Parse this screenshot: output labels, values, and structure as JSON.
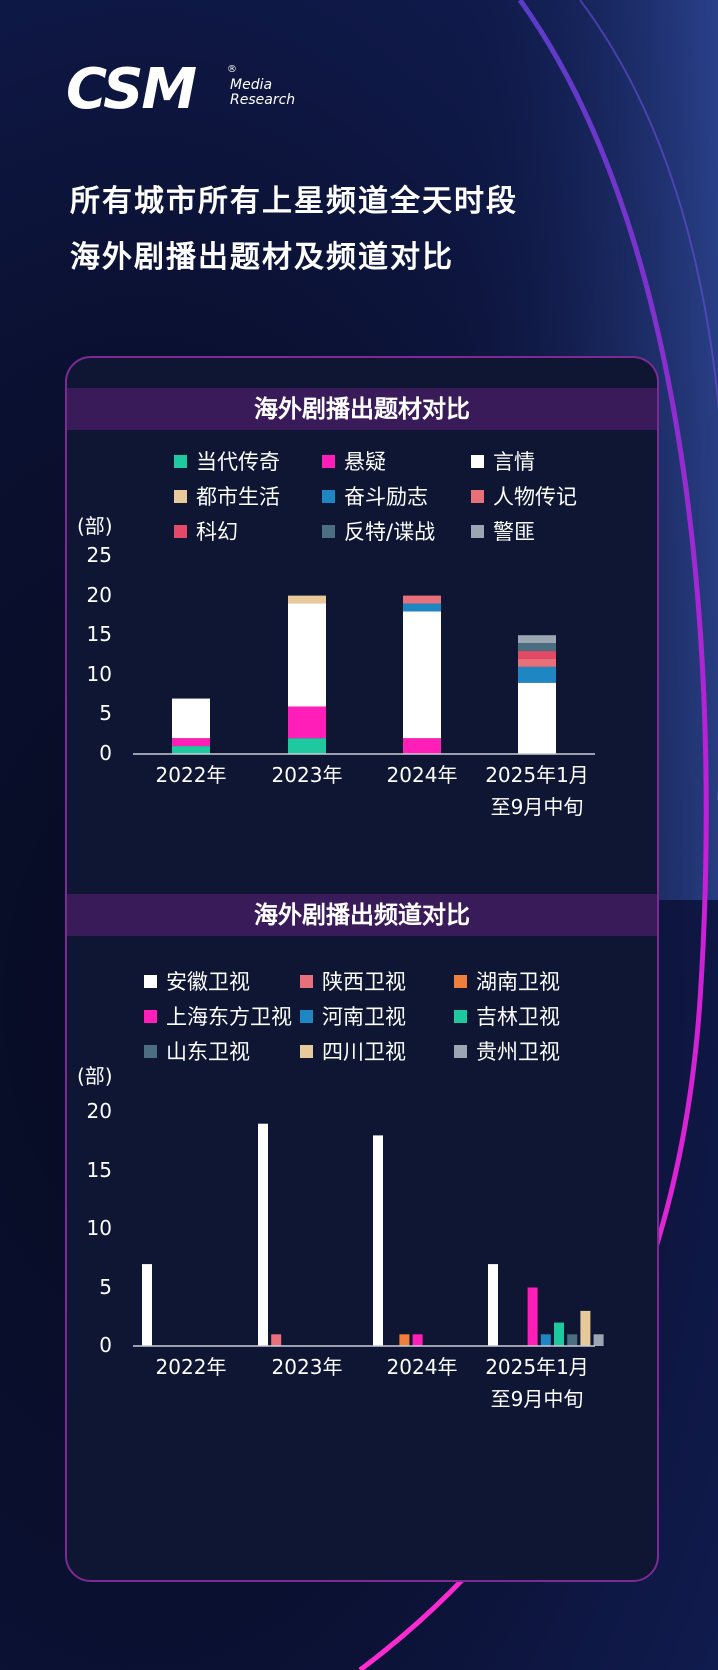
{
  "logo": {
    "main": "CSM",
    "sub1": "Media",
    "sub2": "Research"
  },
  "page": {
    "title_line1": "所有城市所有上星频道全天时段",
    "title_line2": "海外剧播出题材及频道对比"
  },
  "chart_data": [
    {
      "type": "bar",
      "stacked": true,
      "title": "海外剧播出题材对比",
      "ylabel": "(部)",
      "ylim": [
        0,
        25
      ],
      "yticks": [
        0,
        5,
        10,
        15,
        20,
        25
      ],
      "categories": [
        "2022年",
        "2023年",
        "2024年",
        "2025年1月\n至9月中旬"
      ],
      "series": [
        {
          "name": "当代传奇",
          "color": "#1ec9a0",
          "values": [
            1,
            2,
            0,
            0
          ]
        },
        {
          "name": "悬疑",
          "color": "#ff1fb8",
          "values": [
            1,
            4,
            2,
            0
          ]
        },
        {
          "name": "言情",
          "color": "#ffffff",
          "values": [
            5,
            13,
            16,
            9
          ]
        },
        {
          "name": "都市生活",
          "color": "#e8c99b",
          "values": [
            0,
            1,
            0,
            0
          ]
        },
        {
          "name": "奋斗励志",
          "color": "#1f86c4",
          "values": [
            0,
            0,
            1,
            2
          ]
        },
        {
          "name": "人物传记",
          "color": "#e8707a",
          "values": [
            0,
            0,
            1,
            1
          ]
        },
        {
          "name": "科幻",
          "color": "#e34a67",
          "values": [
            0,
            0,
            0,
            1
          ]
        },
        {
          "name": "反特/谍战",
          "color": "#4b6e80",
          "values": [
            0,
            0,
            0,
            1
          ]
        },
        {
          "name": "警匪",
          "color": "#9aa7b3",
          "values": [
            0,
            0,
            0,
            1
          ]
        }
      ]
    },
    {
      "type": "bar",
      "stacked": false,
      "title": "海外剧播出频道对比",
      "ylabel": "(部)",
      "ylim": [
        0,
        20
      ],
      "yticks": [
        0,
        5,
        10,
        15,
        20
      ],
      "categories": [
        "2022年",
        "2023年",
        "2024年",
        "2025年1月\n至9月中旬"
      ],
      "series": [
        {
          "name": "安徽卫视",
          "color": "#ffffff",
          "values": [
            7,
            19,
            18,
            7
          ]
        },
        {
          "name": "陕西卫视",
          "color": "#e8707a",
          "values": [
            0,
            1,
            0,
            0
          ]
        },
        {
          "name": "湖南卫视",
          "color": "#f07f3c",
          "values": [
            0,
            0,
            1,
            0
          ]
        },
        {
          "name": "上海东方卫视",
          "color": "#ff1fb8",
          "values": [
            0,
            0,
            1,
            5
          ]
        },
        {
          "name": "河南卫视",
          "color": "#1f86c4",
          "values": [
            0,
            0,
            0,
            1
          ]
        },
        {
          "name": "吉林卫视",
          "color": "#1ec9a0",
          "values": [
            0,
            0,
            0,
            2
          ]
        },
        {
          "name": "山东卫视",
          "color": "#4b6e80",
          "values": [
            0,
            0,
            0,
            1
          ]
        },
        {
          "name": "四川卫视",
          "color": "#e8c99b",
          "values": [
            0,
            0,
            0,
            3
          ]
        },
        {
          "name": "贵州卫视",
          "color": "#9aa7b3",
          "values": [
            0,
            0,
            0,
            1
          ]
        }
      ]
    }
  ]
}
